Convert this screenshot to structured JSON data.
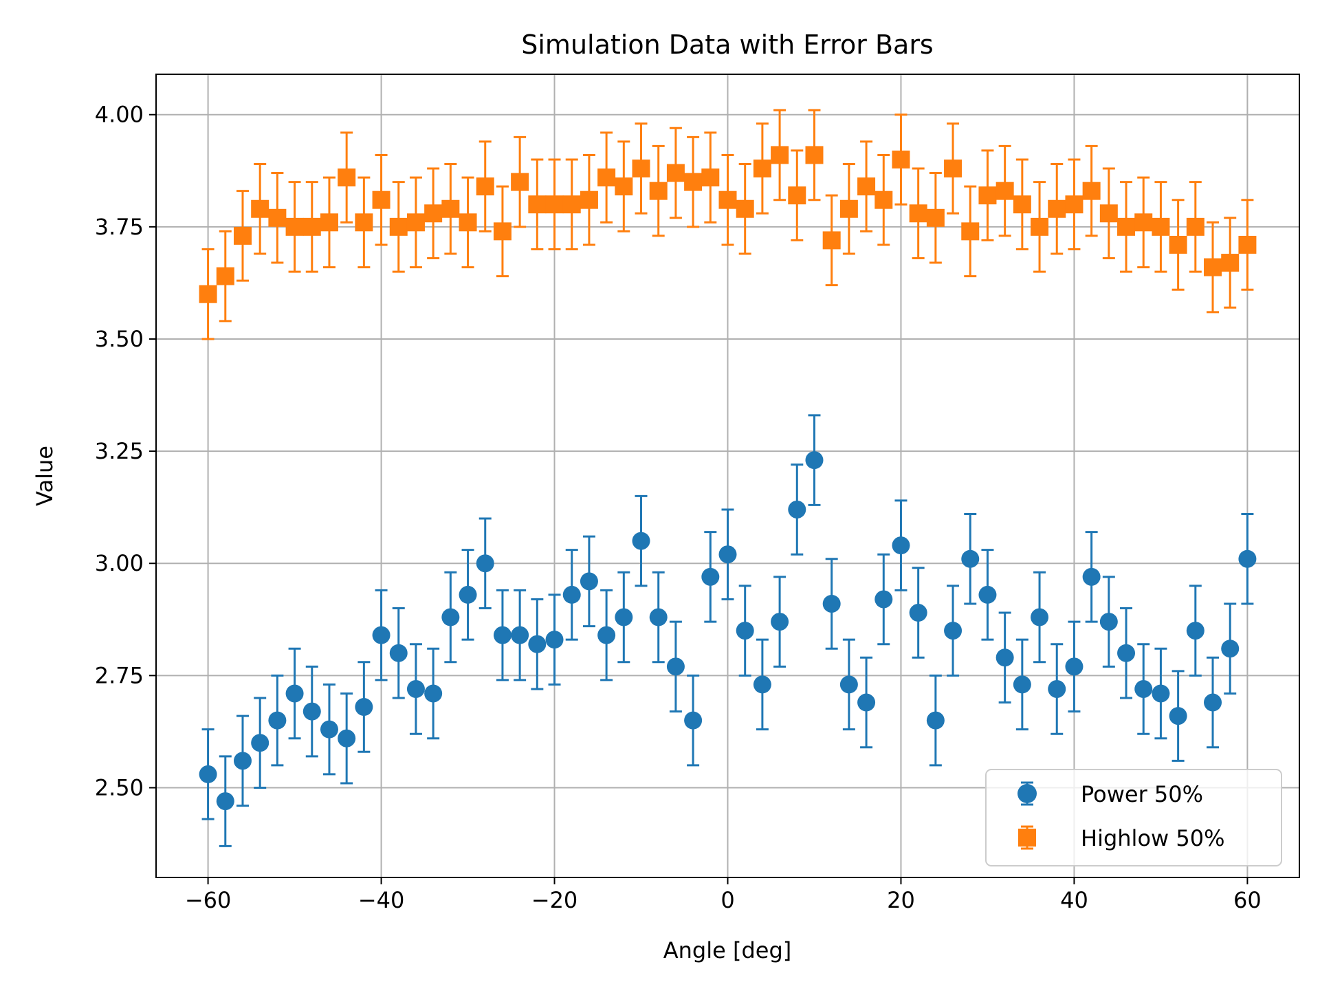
{
  "chart_data": {
    "type": "scatter",
    "title": "Simulation Data with Error Bars",
    "xlabel": "Angle [deg]",
    "ylabel": "Value",
    "xlim": [
      -66,
      66
    ],
    "ylim": [
      2.3,
      4.09
    ],
    "xticks": [
      -60,
      -40,
      -20,
      0,
      20,
      40,
      60
    ],
    "xtick_labels": [
      "−60",
      "−40",
      "−20",
      "0",
      "20",
      "40",
      "60"
    ],
    "yticks": [
      2.5,
      2.75,
      3.0,
      3.25,
      3.5,
      3.75,
      4.0
    ],
    "ytick_labels": [
      "2.50",
      "2.75",
      "3.00",
      "3.25",
      "3.50",
      "3.75",
      "4.00"
    ],
    "grid": true,
    "legend_position": "lower-right",
    "x": [
      -60,
      -58,
      -56,
      -54,
      -52,
      -50,
      -48,
      -46,
      -44,
      -42,
      -40,
      -38,
      -36,
      -34,
      -32,
      -30,
      -28,
      -26,
      -24,
      -22,
      -20,
      -18,
      -16,
      -14,
      -12,
      -10,
      -8,
      -6,
      -4,
      -2,
      0,
      2,
      4,
      6,
      8,
      10,
      12,
      14,
      16,
      18,
      20,
      22,
      24,
      26,
      28,
      30,
      32,
      34,
      36,
      38,
      40,
      42,
      44,
      46,
      48,
      50,
      52,
      54,
      56,
      58,
      60
    ],
    "series": [
      {
        "name": "Power 50%",
        "marker": "circle",
        "color": "#1f77b4",
        "error": 0.1,
        "values": [
          2.53,
          2.47,
          2.56,
          2.6,
          2.65,
          2.71,
          2.67,
          2.63,
          2.61,
          2.68,
          2.84,
          2.8,
          2.72,
          2.71,
          2.88,
          2.93,
          3.0,
          2.84,
          2.84,
          2.82,
          2.83,
          2.93,
          2.96,
          2.84,
          2.88,
          3.05,
          2.88,
          2.77,
          2.65,
          2.97,
          3.02,
          2.85,
          2.73,
          2.87,
          3.12,
          3.23,
          2.91,
          2.73,
          2.69,
          2.92,
          3.04,
          2.89,
          2.65,
          2.85,
          3.01,
          2.93,
          2.79,
          2.73,
          2.88,
          2.72,
          2.77,
          2.97,
          2.87,
          2.8,
          2.72,
          2.71,
          2.66,
          2.85,
          2.69,
          2.81,
          3.01
        ]
      },
      {
        "name": "Highlow 50%",
        "marker": "square",
        "color": "#ff7f0e",
        "error": 0.1,
        "values": [
          3.6,
          3.64,
          3.73,
          3.79,
          3.77,
          3.75,
          3.75,
          3.76,
          3.86,
          3.76,
          3.81,
          3.75,
          3.76,
          3.78,
          3.79,
          3.76,
          3.84,
          3.74,
          3.85,
          3.8,
          3.8,
          3.8,
          3.81,
          3.86,
          3.84,
          3.88,
          3.83,
          3.87,
          3.85,
          3.86,
          3.81,
          3.79,
          3.88,
          3.91,
          3.82,
          3.91,
          3.72,
          3.79,
          3.84,
          3.81,
          3.9,
          3.78,
          3.77,
          3.88,
          3.74,
          3.82,
          3.83,
          3.8,
          3.75,
          3.79,
          3.8,
          3.83,
          3.78,
          3.75,
          3.76,
          3.75,
          3.71,
          3.75,
          3.66,
          3.67,
          3.71
        ]
      }
    ]
  }
}
